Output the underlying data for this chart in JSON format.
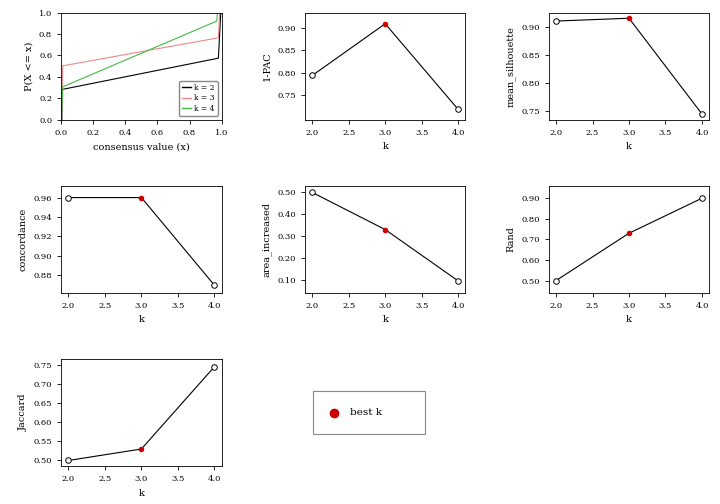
{
  "k_values": [
    2,
    3,
    4
  ],
  "pac_1minus": [
    0.794,
    0.91,
    0.718
  ],
  "pac_best": [
    3
  ],
  "mean_silhouette": [
    0.91,
    0.915,
    0.745
  ],
  "mean_sil_best": [
    3
  ],
  "concordance": [
    0.96,
    0.96,
    0.87
  ],
  "concordance_best": [
    3
  ],
  "area_increased": [
    0.5,
    0.33,
    0.095
  ],
  "area_best": [
    3
  ],
  "rand": [
    0.5,
    0.73,
    0.9
  ],
  "rand_best": [
    3
  ],
  "jaccard": [
    0.5,
    0.53,
    0.745
  ],
  "jaccard_best": [
    3
  ],
  "line_color": "#000000",
  "open_dot_color": "#ffffff",
  "open_dot_edge": "#000000",
  "best_dot_color": "#cc0000",
  "bg_color": "#ffffff",
  "legend_line_colors": [
    "#000000",
    "#ee8888",
    "#44bb44"
  ],
  "legend_labels": [
    "k = 2",
    "k = 3",
    "k = 4"
  ],
  "cdf_ylabel": "P(X <= x)",
  "cdf_xlabel": "consensus value (x)"
}
